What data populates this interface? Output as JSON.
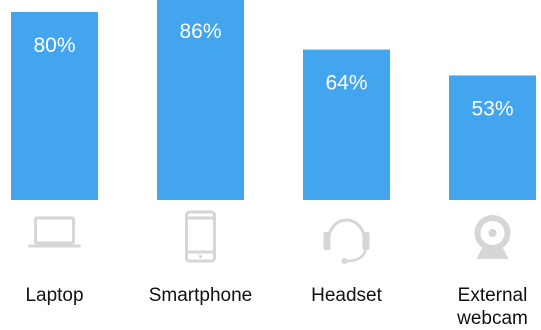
{
  "chart_data": {
    "type": "bar",
    "categories": [
      "Laptop",
      "Smartphone",
      "Headset",
      "External webcam"
    ],
    "category_lines": [
      [
        "Laptop"
      ],
      [
        "Smartphone"
      ],
      [
        "Headset"
      ],
      [
        "External",
        "webcam"
      ]
    ],
    "values": [
      80,
      86,
      64,
      53
    ],
    "value_labels": [
      "80%",
      "86%",
      "64%",
      "53%"
    ],
    "icons": [
      "laptop-icon",
      "smartphone-icon",
      "headset-icon",
      "webcam-icon"
    ],
    "ylim": [
      0,
      100
    ],
    "title": "",
    "xlabel": "",
    "ylabel": "",
    "grid": false,
    "legend": "none"
  },
  "colors": {
    "bar": "#43A5EE",
    "bar_label": "#ffffff",
    "icon": "#D6D6D6",
    "category_text": "#111111"
  }
}
